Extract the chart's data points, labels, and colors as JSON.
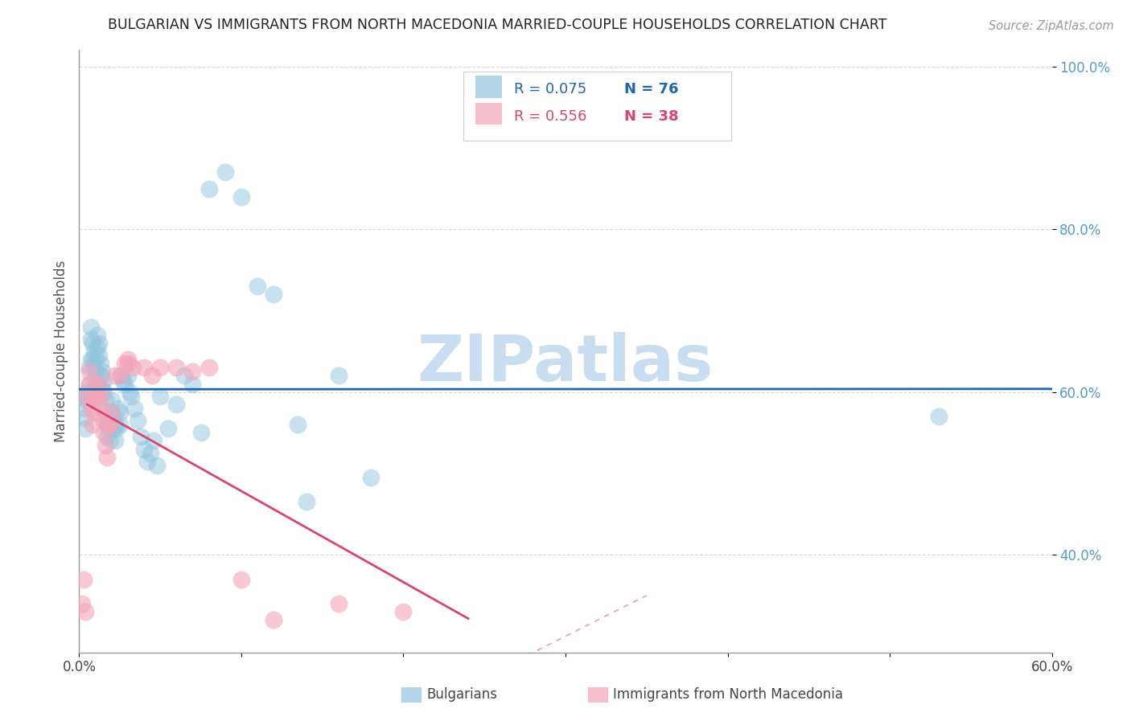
{
  "title": "BULGARIAN VS IMMIGRANTS FROM NORTH MACEDONIA MARRIED-COUPLE HOUSEHOLDS CORRELATION CHART",
  "source": "Source: ZipAtlas.com",
  "ylabel": "Married-couple Households",
  "xlim": [
    0.0,
    0.6
  ],
  "ylim": [
    0.28,
    1.02
  ],
  "blue_R": 0.075,
  "blue_N": 76,
  "pink_R": 0.556,
  "pink_N": 38,
  "blue_color": "#92c5de",
  "pink_color": "#f4a4b8",
  "blue_line_color": "#2166ac",
  "pink_line_color": "#d6466e",
  "dashed_line_color": "#e8a0b0",
  "watermark": "ZIPatlas",
  "watermark_color": "#c8ddf0",
  "background_color": "#ffffff",
  "legend_label_blue": "Bulgarians",
  "legend_label_pink": "Immigrants from North Macedonia",
  "blue_x": [
    0.002,
    0.003,
    0.004,
    0.004,
    0.005,
    0.005,
    0.006,
    0.006,
    0.007,
    0.007,
    0.007,
    0.008,
    0.008,
    0.009,
    0.009,
    0.01,
    0.01,
    0.01,
    0.011,
    0.011,
    0.012,
    0.012,
    0.013,
    0.013,
    0.014,
    0.014,
    0.015,
    0.015,
    0.016,
    0.016,
    0.017,
    0.017,
    0.018,
    0.018,
    0.019,
    0.019,
    0.02,
    0.02,
    0.021,
    0.021,
    0.022,
    0.022,
    0.023,
    0.024,
    0.025,
    0.025,
    0.026,
    0.027,
    0.028,
    0.03,
    0.031,
    0.032,
    0.034,
    0.036,
    0.038,
    0.04,
    0.042,
    0.044,
    0.046,
    0.048,
    0.05,
    0.055,
    0.06,
    0.065,
    0.07,
    0.075,
    0.08,
    0.09,
    0.1,
    0.11,
    0.12,
    0.135,
    0.14,
    0.16,
    0.18,
    0.53
  ],
  "blue_y": [
    0.595,
    0.58,
    0.555,
    0.568,
    0.59,
    0.6,
    0.61,
    0.63,
    0.64,
    0.665,
    0.68,
    0.66,
    0.64,
    0.65,
    0.63,
    0.61,
    0.625,
    0.64,
    0.655,
    0.67,
    0.645,
    0.66,
    0.635,
    0.62,
    0.605,
    0.625,
    0.615,
    0.6,
    0.59,
    0.575,
    0.56,
    0.545,
    0.57,
    0.555,
    0.54,
    0.56,
    0.575,
    0.59,
    0.57,
    0.555,
    0.54,
    0.56,
    0.555,
    0.58,
    0.575,
    0.56,
    0.62,
    0.615,
    0.61,
    0.62,
    0.6,
    0.595,
    0.58,
    0.565,
    0.545,
    0.53,
    0.515,
    0.525,
    0.54,
    0.51,
    0.595,
    0.555,
    0.585,
    0.62,
    0.61,
    0.55,
    0.85,
    0.87,
    0.84,
    0.73,
    0.72,
    0.56,
    0.465,
    0.62,
    0.495,
    0.57
  ],
  "pink_x": [
    0.002,
    0.003,
    0.004,
    0.005,
    0.006,
    0.006,
    0.007,
    0.008,
    0.008,
    0.009,
    0.01,
    0.011,
    0.012,
    0.013,
    0.014,
    0.015,
    0.015,
    0.016,
    0.017,
    0.018,
    0.019,
    0.02,
    0.022,
    0.025,
    0.028,
    0.03,
    0.03,
    0.033,
    0.04,
    0.045,
    0.05,
    0.06,
    0.07,
    0.08,
    0.1,
    0.12,
    0.16,
    0.2
  ],
  "pink_y": [
    0.34,
    0.37,
    0.33,
    0.595,
    0.61,
    0.625,
    0.58,
    0.595,
    0.56,
    0.575,
    0.61,
    0.595,
    0.61,
    0.595,
    0.58,
    0.565,
    0.55,
    0.535,
    0.52,
    0.56,
    0.56,
    0.575,
    0.62,
    0.62,
    0.635,
    0.64,
    0.635,
    0.63,
    0.63,
    0.62,
    0.63,
    0.63,
    0.625,
    0.63,
    0.37,
    0.32,
    0.34,
    0.33
  ]
}
